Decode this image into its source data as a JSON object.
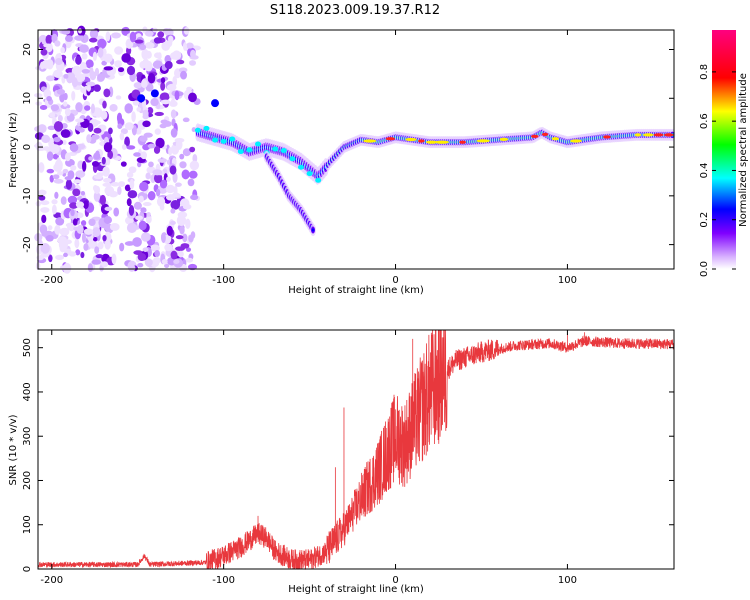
{
  "title": "S118.2023.009.19.37.R12",
  "chart_data": [
    {
      "type": "heatmap",
      "xlabel": "Height of straight line (km)",
      "ylabel": "Frequency (Hz)",
      "xlim": [
        -208,
        162
      ],
      "ylim": [
        -25,
        24
      ],
      "xticks": [
        -200,
        -100,
        0,
        100
      ],
      "yticks": [
        -20,
        -10,
        0,
        10,
        20
      ],
      "colorbar": {
        "label": "Normalized spectral amplitude",
        "range": [
          0,
          0.97
        ],
        "ticks": [
          0.0,
          0.2,
          0.4,
          0.6,
          0.8
        ],
        "tick_labels": [
          "0.0",
          "0.2",
          "0.4",
          "0.6",
          "0.8"
        ],
        "colors": [
          "#ffffff",
          "#7f00ff",
          "#0000ff",
          "#00ffff",
          "#00ff00",
          "#ffff00",
          "#ff0000",
          "#ff007f"
        ]
      },
      "ridge": {
        "x": [
          -115,
          -105,
          -95,
          -85,
          -75,
          -65,
          -55,
          -45,
          -38,
          -30,
          -20,
          -10,
          0,
          10,
          20,
          40,
          60,
          80,
          85,
          90,
          100,
          110,
          120,
          140,
          162
        ],
        "y": [
          3,
          2,
          1,
          -1,
          0,
          -1,
          -3,
          -6,
          -3,
          0,
          1.5,
          1,
          2,
          1.5,
          1,
          1,
          1.5,
          2,
          3,
          2,
          1,
          1.5,
          2,
          2.5,
          2.5
        ]
      },
      "branch": {
        "x": [
          -75,
          -68,
          -62,
          -55,
          -48
        ],
        "y": [
          -2,
          -6,
          -10,
          -13,
          -17
        ]
      },
      "noise_region": {
        "x": [
          -208,
          -115
        ],
        "y": [
          -25,
          24
        ]
      }
    },
    {
      "type": "line",
      "xlabel": "Height of straight line (km)",
      "ylabel": "SNR (10 * v/v)",
      "xlim": [
        -208,
        162
      ],
      "ylim": [
        0,
        540
      ],
      "xticks": [
        -200,
        -100,
        0,
        100
      ],
      "yticks": [
        0,
        100,
        200,
        300,
        400,
        500
      ],
      "color": "#e8383d",
      "envelope": {
        "x": [
          -208,
          -150,
          -146,
          -143,
          -110,
          -100,
          -90,
          -80,
          -75,
          -70,
          -60,
          -50,
          -40,
          -30,
          -20,
          -10,
          0,
          5,
          10,
          20,
          30,
          35,
          50,
          70,
          90,
          100,
          110,
          130,
          162
        ],
        "y": [
          10,
          10,
          30,
          10,
          15,
          30,
          50,
          80,
          70,
          40,
          20,
          20,
          40,
          90,
          160,
          220,
          300,
          280,
          320,
          400,
          450,
          470,
          490,
          505,
          510,
          500,
          515,
          510,
          508
        ]
      },
      "spikes": {
        "x": [
          -80,
          -35,
          -30,
          10,
          100,
          110
        ],
        "y": [
          120,
          230,
          365,
          520,
          530,
          535
        ]
      }
    }
  ]
}
